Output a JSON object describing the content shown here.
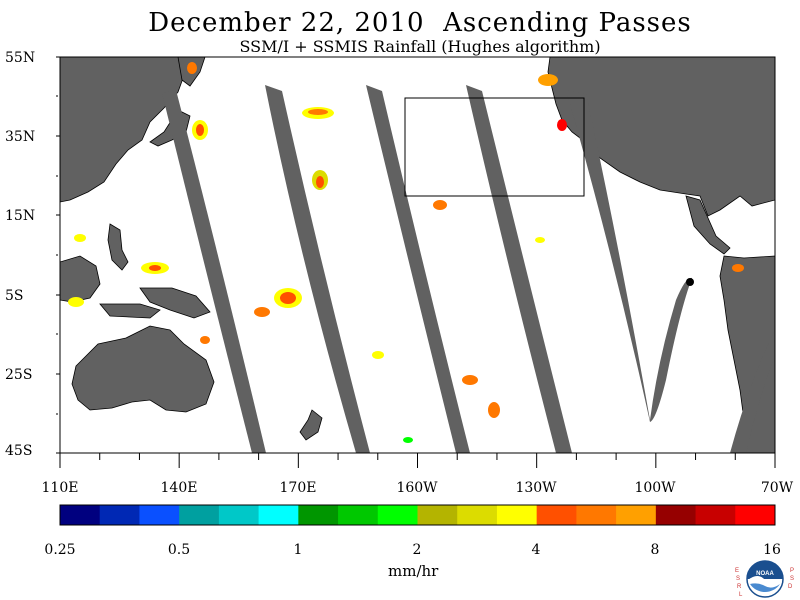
{
  "title": "December 22, 2010  Ascending Passes",
  "subtitle": "SSM/I + SSMIS Rainfall (Hughes algorithm)",
  "lat_labels": [
    "55N",
    "35N",
    "15N",
    "5S",
    "25S",
    "45S"
  ],
  "lon_labels": [
    "110E",
    "140E",
    "170E",
    "160W",
    "130W",
    "100W",
    "70W"
  ],
  "colorbar": {
    "colors": [
      "#00007f",
      "#0028b4",
      "#0a50ff",
      "#00a0a0",
      "#00c8c8",
      "#00ffff",
      "#009600",
      "#00c800",
      "#00ff00",
      "#b4b400",
      "#dcdc00",
      "#ffff00",
      "#ff5000",
      "#ff7800",
      "#ffa000",
      "#960000",
      "#c80000",
      "#ff0000"
    ],
    "tick_labels": [
      "0.25",
      "0.5",
      "1",
      "2",
      "4",
      "8",
      "16"
    ],
    "units": "mm/hr"
  },
  "map": {
    "no_data_color": "#616161",
    "ocean_color": "#ffffff",
    "land_color": "#616161"
  },
  "logo": {
    "text": "NOAA",
    "left_letters": "ESRL",
    "right_letters": "PSD"
  }
}
